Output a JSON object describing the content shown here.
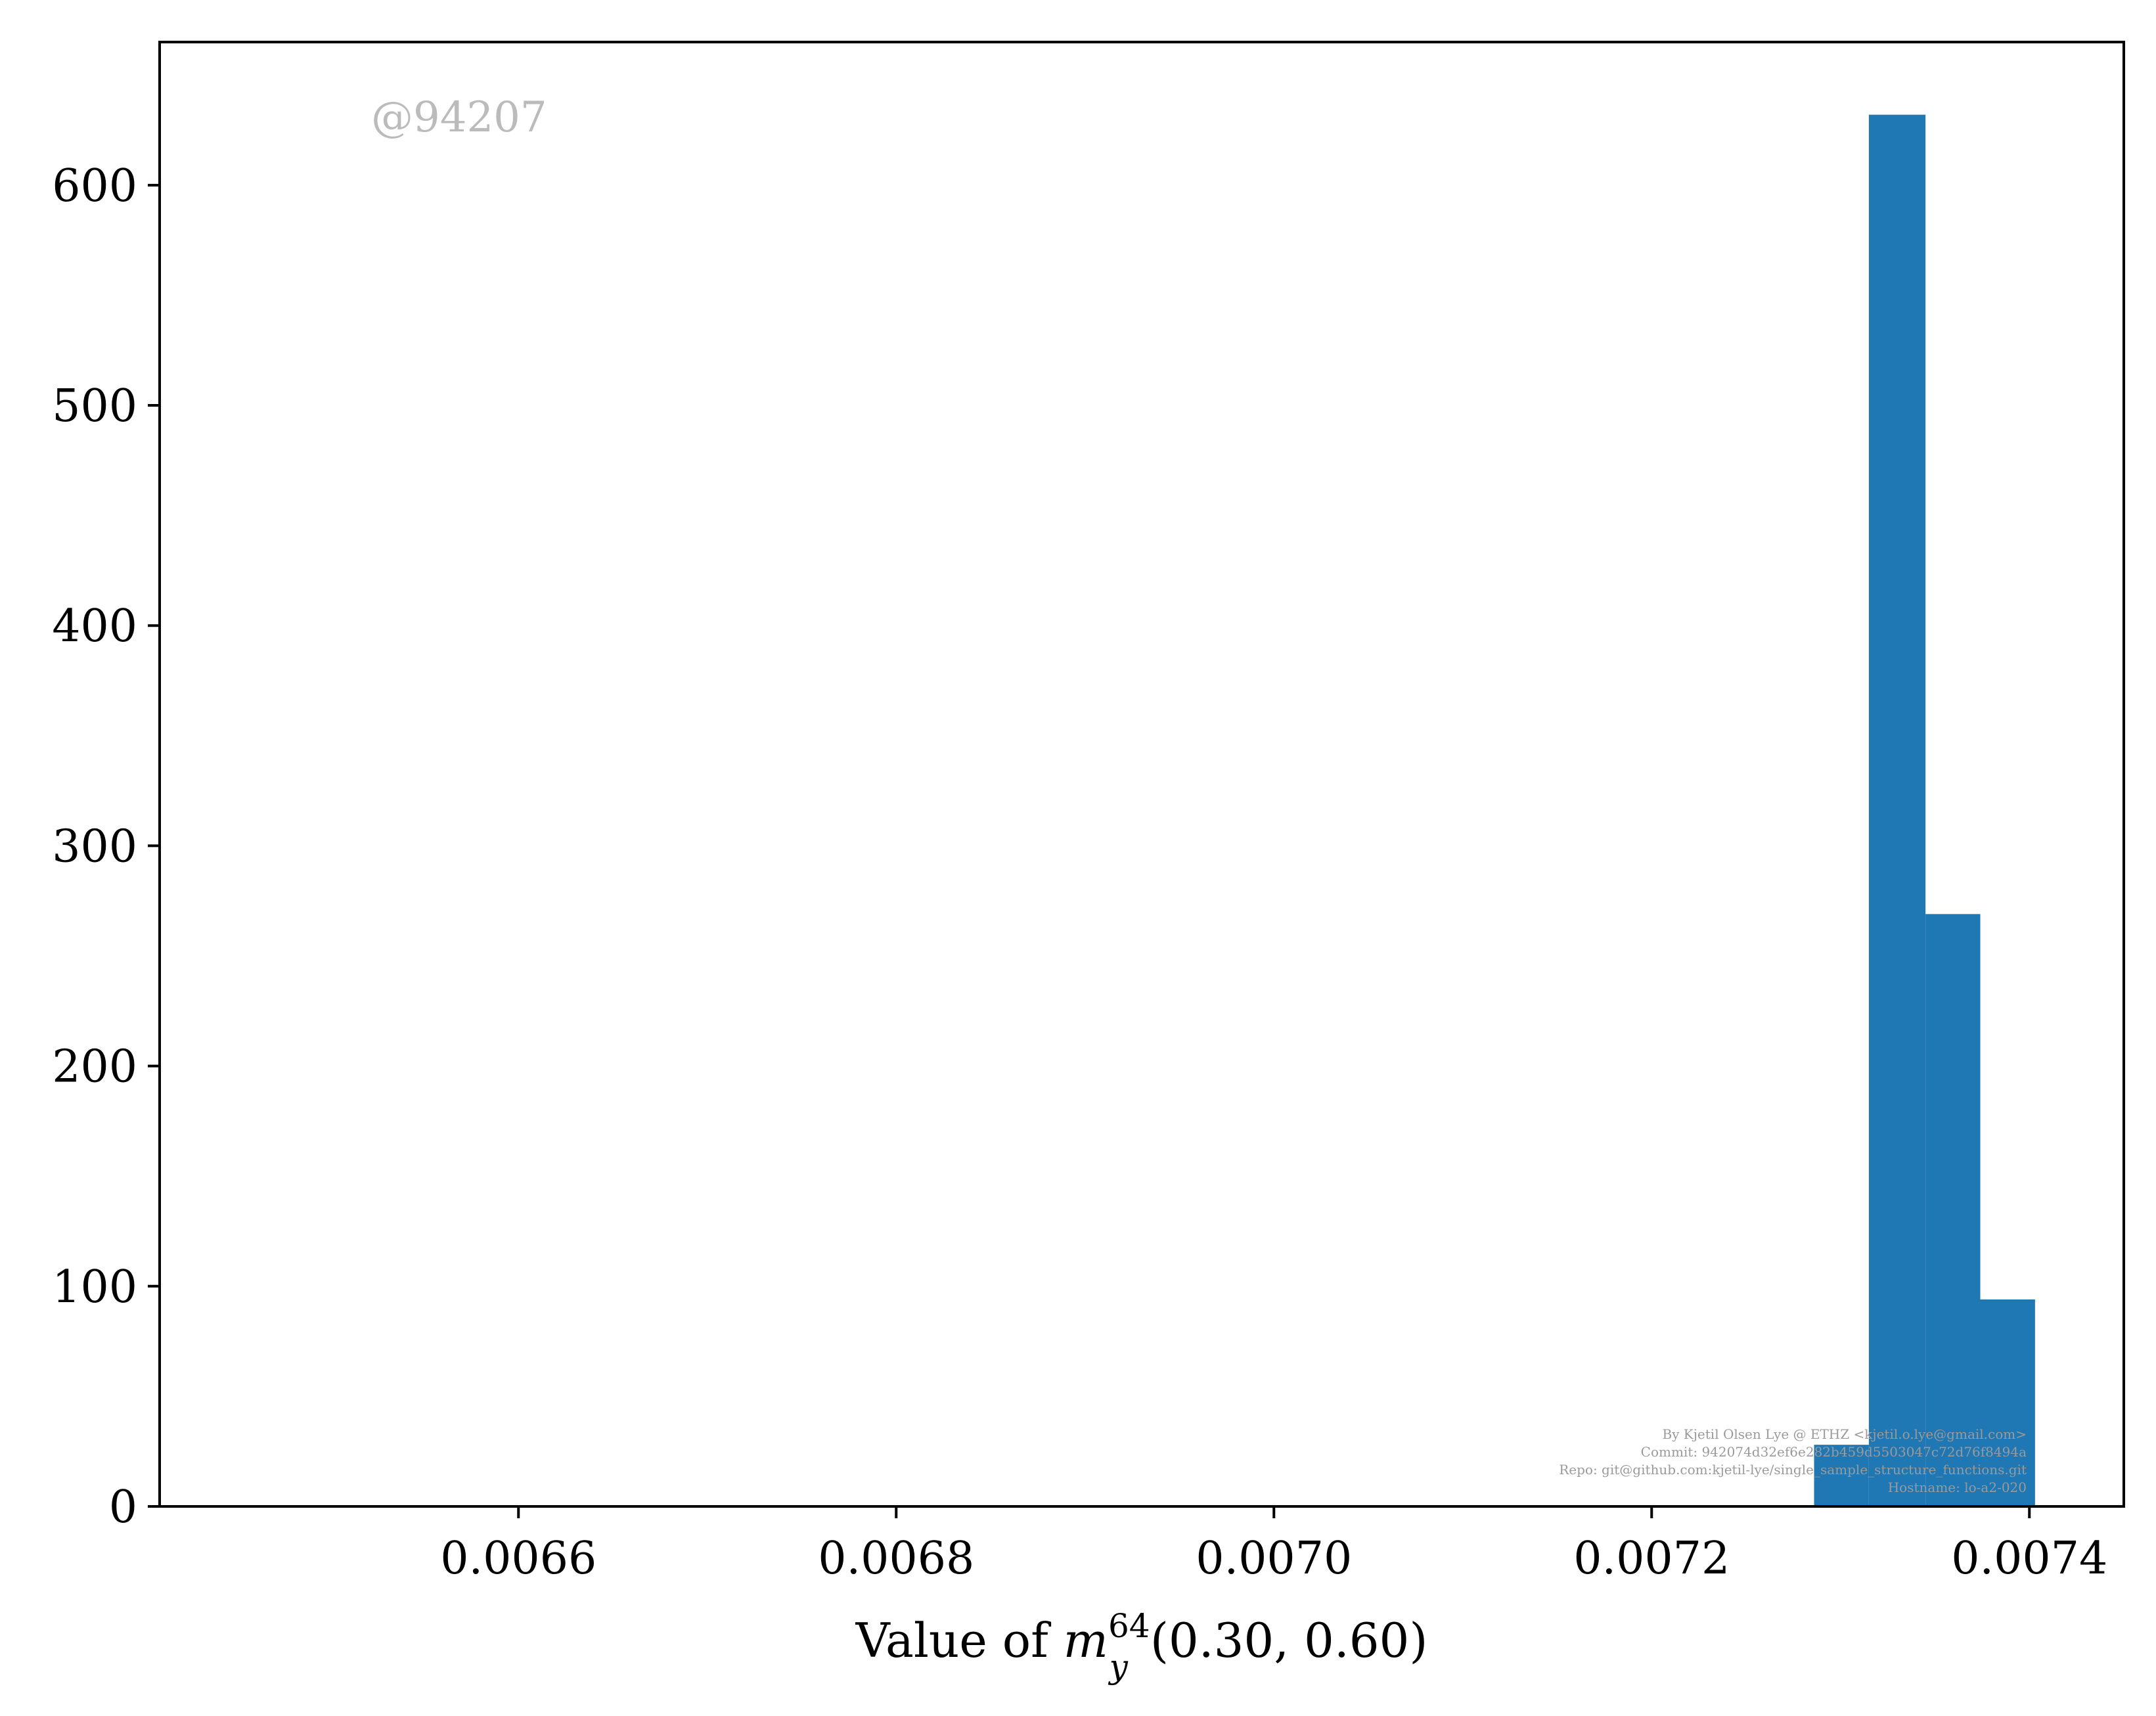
{
  "chart_data": {
    "type": "bar",
    "histogram": true,
    "title": "",
    "xlabel": "Value of m_y^64(0.30, 0.60)",
    "xlabel_parts": {
      "prefix": "Value of ",
      "var": "m",
      "sub": "y",
      "sup": "64",
      "args": "(0.30, 0.60)"
    },
    "ylabel": "",
    "xlim": [
      0.00641,
      0.00745
    ],
    "ylim": [
      0,
      665
    ],
    "xticks": [
      0.0066,
      0.0068,
      0.007,
      0.0072,
      0.0074
    ],
    "xtick_labels": [
      "0.0066",
      "0.0068",
      "0.0070",
      "0.0072",
      "0.0074"
    ],
    "yticks": [
      0,
      100,
      200,
      300,
      400,
      500,
      600
    ],
    "ytick_labels": [
      "0",
      "100",
      "200",
      "300",
      "400",
      "500",
      "600"
    ],
    "bins": [
      {
        "x0": 0.007286,
        "x1": 0.007315,
        "count": 28
      },
      {
        "x0": 0.007315,
        "x1": 0.007345,
        "count": 632
      },
      {
        "x0": 0.007345,
        "x1": 0.007374,
        "count": 269
      },
      {
        "x0": 0.007374,
        "x1": 0.007403,
        "count": 94
      }
    ],
    "grid": false,
    "legend": "none",
    "bar_color": "#1f77b4"
  },
  "watermark": "@94207",
  "credits": [
    "By Kjetil Olsen Lye @ ETHZ <kjetil.o.lye@gmail.com>",
    "Commit: 942074d32ef6e282b459d5503047c72d76f8494a",
    "Repo: git@github.com:kjetil-lye/single_sample_structure_functions.git",
    "Hostname: lo-a2-020"
  ]
}
